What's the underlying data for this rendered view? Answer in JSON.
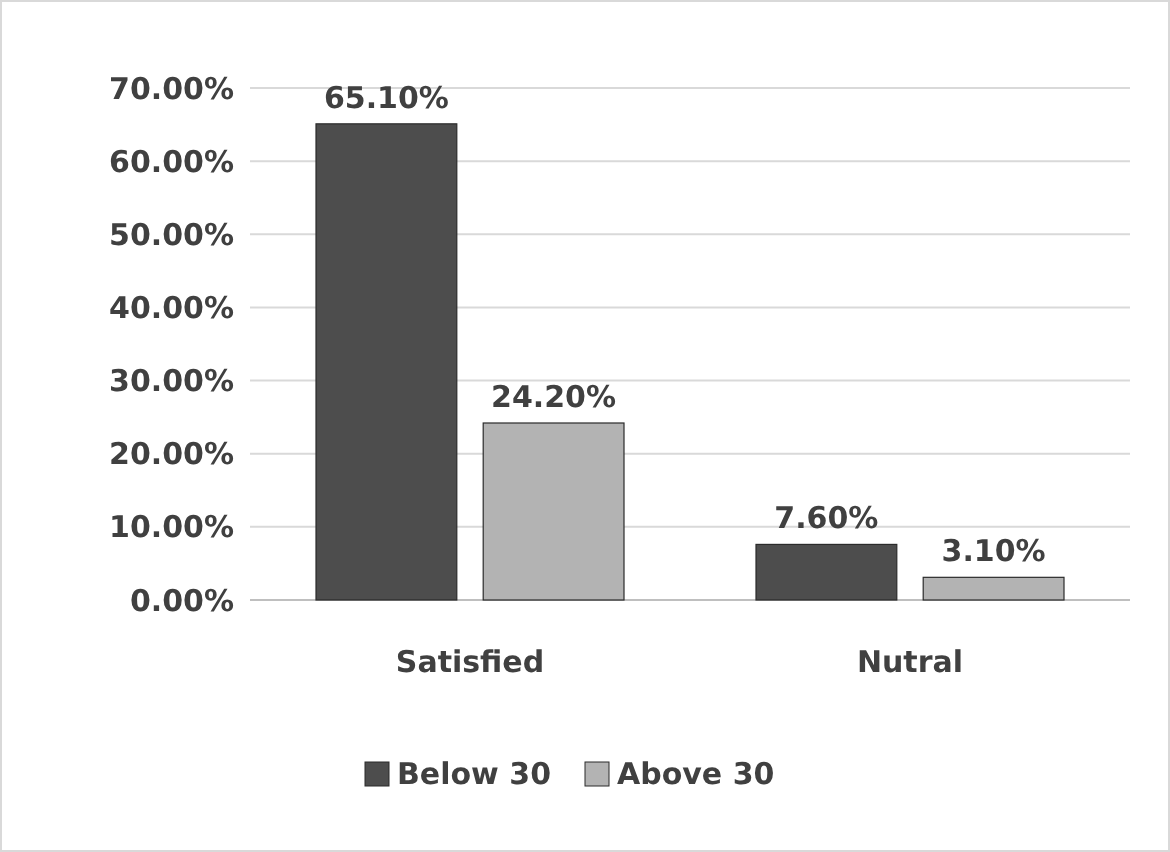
{
  "chart_data": {
    "type": "bar",
    "categories": [
      "Satisfied",
      "Nutral"
    ],
    "series": [
      {
        "name": "Below 30",
        "color": "#4d4d4d",
        "values": [
          65.1,
          7.6
        ],
        "value_labels": [
          "65.10%",
          "7.60%"
        ]
      },
      {
        "name": "Above 30",
        "color": "#b3b3b3",
        "values": [
          24.2,
          3.1
        ],
        "value_labels": [
          "24.20%",
          "3.10%"
        ]
      }
    ],
    "ylim": [
      0,
      70
    ],
    "yticks": [
      {
        "value": 0,
        "label": "0.00%"
      },
      {
        "value": 10,
        "label": "10.00%"
      },
      {
        "value": 20,
        "label": "20.00%"
      },
      {
        "value": 30,
        "label": "30.00%"
      },
      {
        "value": 40,
        "label": "40.00%"
      },
      {
        "value": 50,
        "label": "50.00%"
      },
      {
        "value": 60,
        "label": "60.00%"
      },
      {
        "value": 70,
        "label": "70.00%"
      }
    ],
    "grid": "y",
    "legend": "bottom"
  }
}
